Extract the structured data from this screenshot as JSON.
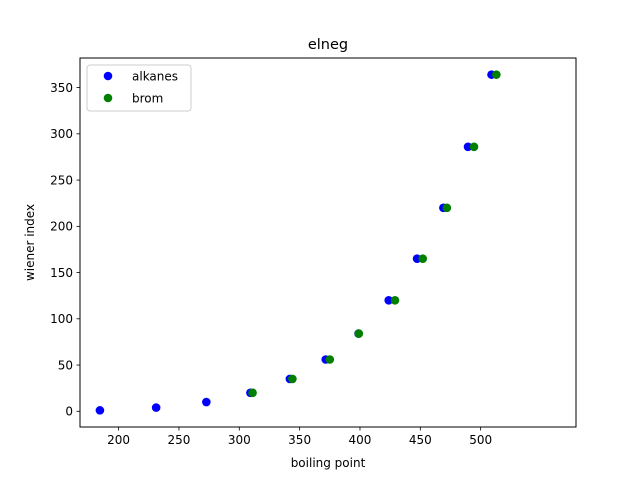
{
  "chart_data": {
    "type": "scatter",
    "title": "elneg",
    "xlabel": "boiling point",
    "ylabel": "wiener index",
    "xlim": [
      168,
      579
    ],
    "ylim": [
      -17,
      382
    ],
    "xticks": [
      200,
      250,
      300,
      350,
      400,
      450,
      500
    ],
    "yticks": [
      0,
      50,
      100,
      150,
      200,
      250,
      300,
      350
    ],
    "grid": false,
    "legend_position": "top-left",
    "series": [
      {
        "name": "alkanes",
        "color": "#0000ff",
        "points": [
          [
            184.5,
            1
          ],
          [
            231.1,
            4
          ],
          [
            272.7,
            10
          ],
          [
            309.2,
            20
          ],
          [
            341.9,
            35
          ],
          [
            371.6,
            56
          ],
          [
            398.8,
            84
          ],
          [
            423.8,
            120
          ],
          [
            447.3,
            165
          ],
          [
            469.1,
            220
          ],
          [
            489.5,
            286
          ],
          [
            509.0,
            364
          ]
        ]
      },
      {
        "name": "brom",
        "color": "#008000",
        "points": [
          [
            311.0,
            20
          ],
          [
            344.0,
            35
          ],
          [
            375.0,
            56
          ],
          [
            399.0,
            84
          ],
          [
            429.0,
            120
          ],
          [
            452.0,
            165
          ],
          [
            472.0,
            220
          ],
          [
            494.5,
            286
          ],
          [
            513.0,
            364
          ]
        ]
      }
    ]
  }
}
